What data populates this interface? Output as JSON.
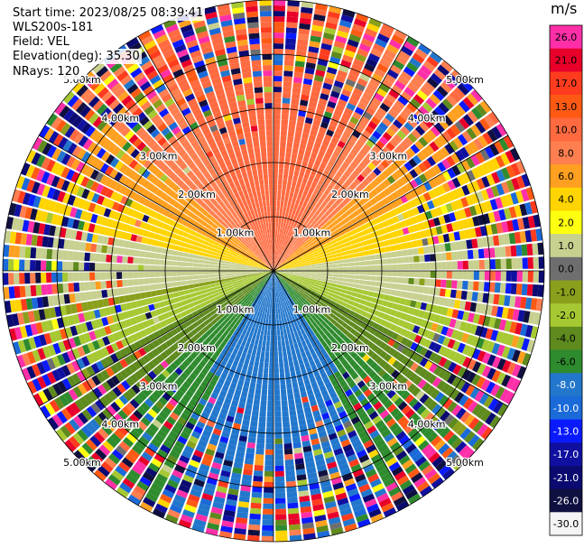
{
  "header": {
    "start_time": "Start time: 2023/08/25 08:39:41",
    "instrument": "WLS200s-181",
    "field": "Field: VEL",
    "elevation": "Elevation(deg): 35.30",
    "nrays": "NRays: 120"
  },
  "colorbar": {
    "unit": "m/s",
    "ticks": [
      "26.0",
      "21.0",
      "17.0",
      "13.0",
      "10.0",
      "8.0",
      "6.0",
      "4.0",
      "2.0",
      "1.0",
      "0.0",
      "-1.0",
      "-2.0",
      "-4.0",
      "-6.0",
      "-8.0",
      "-10.0",
      "-13.0",
      "-17.0",
      "-21.0",
      "-26.0",
      "-30.0"
    ],
    "colors": [
      "#ff2fa8",
      "#e8002a",
      "#ff3c1e",
      "#ff5a14",
      "#ff6a40",
      "#ff7f50",
      "#ffa020",
      "#ffd400",
      "#ffff10",
      "#c8d090",
      "#6e6e6e",
      "#8aa01c",
      "#a6c832",
      "#5e8a1e",
      "#2e8b2e",
      "#2277cc",
      "#1a6ad8",
      "#0a1aff",
      "#1010a0",
      "#0a0a70",
      "#101040",
      "#f4f4f4"
    ]
  },
  "chart_data": {
    "type": "heatmap",
    "projection": "polar-ppi",
    "field": "VEL",
    "units": "m/s",
    "elevation_deg": 35.3,
    "nrays": 120,
    "range_rings_km": [
      1.0,
      2.0,
      3.0,
      4.0,
      5.0
    ],
    "ring_labels": [
      "1.00km",
      "2.00km",
      "3.00km",
      "4.00km",
      "5.00km"
    ],
    "spokes_deg": [
      0,
      30,
      60,
      90,
      120,
      150,
      180,
      210,
      240,
      270,
      300,
      330
    ],
    "value_range": [
      -30,
      26
    ],
    "approx_field_pattern": [
      {
        "region": "north sector",
        "typical_value": 8
      },
      {
        "region": "near-east / near-west horizontal band",
        "typical_value": 2
      },
      {
        "region": "east-west axis",
        "typical_value": 0
      },
      {
        "region": "south-west / south-east inner",
        "typical_value": -2
      },
      {
        "region": "south sector",
        "typical_value": -6
      },
      {
        "region": "far south near center",
        "typical_value": -10
      }
    ],
    "grid": true
  }
}
